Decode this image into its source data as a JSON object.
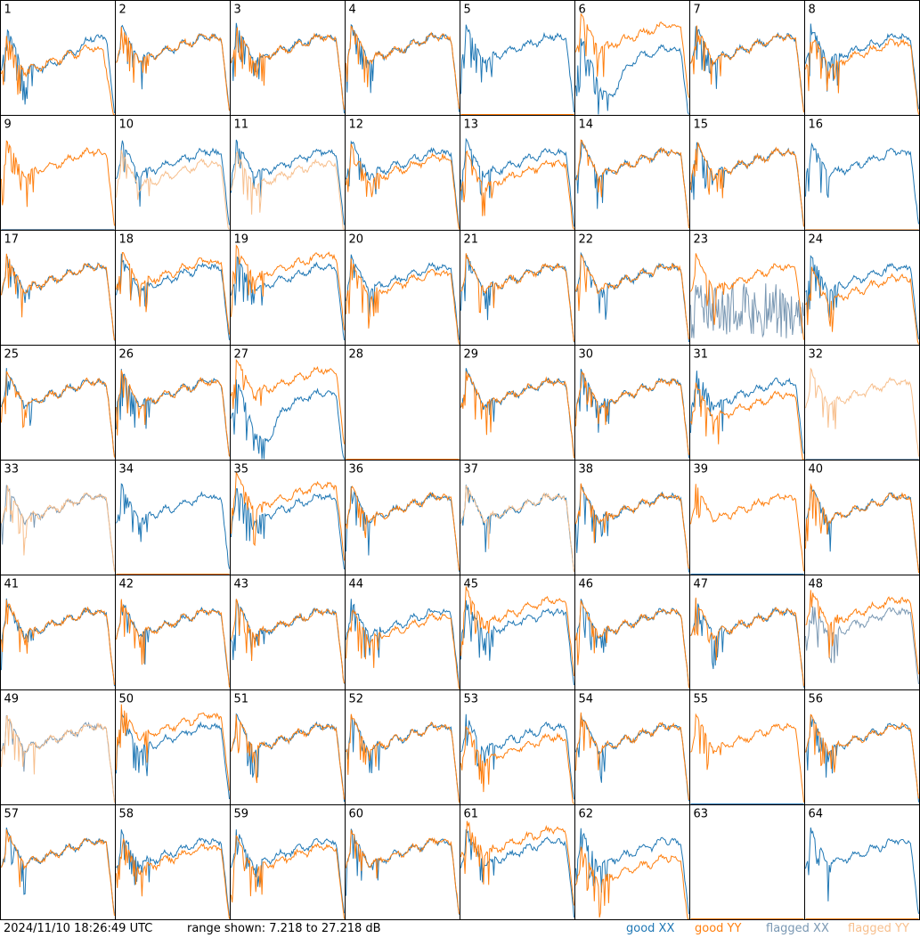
{
  "chart_data": {
    "type": "line",
    "layout": "8x8 grid of per-antenna bandpass spectra",
    "tiles": [
      "1",
      "2",
      "3",
      "4",
      "5",
      "6",
      "7",
      "8",
      "9",
      "10",
      "11",
      "12",
      "13",
      "14",
      "15",
      "16",
      "17",
      "18",
      "19",
      "20",
      "21",
      "22",
      "23",
      "24",
      "25",
      "26",
      "27",
      "28",
      "29",
      "30",
      "31",
      "32",
      "33",
      "34",
      "35",
      "36",
      "37",
      "38",
      "39",
      "40",
      "41",
      "42",
      "43",
      "44",
      "45",
      "46",
      "47",
      "48",
      "49",
      "50",
      "51",
      "52",
      "53",
      "54",
      "55",
      "56",
      "57",
      "58",
      "59",
      "60",
      "61",
      "62",
      "63",
      "64"
    ],
    "ylim_db": [
      7.218,
      27.218
    ],
    "series": [
      {
        "name": "good XX",
        "color": "#1f77b4"
      },
      {
        "name": "good YY",
        "color": "#ff7f0e"
      },
      {
        "name": "flagged XX",
        "color": "#7a98b3"
      },
      {
        "name": "flagged YY",
        "color": "#f7bf8d"
      }
    ],
    "tile_styles": {
      "1": {
        "x": "good",
        "y": "good",
        "yOff": 0.0,
        "spike": 1,
        "xShape": "sag",
        "yShape": "drop"
      },
      "2": {
        "x": "good",
        "y": "good",
        "yOff": 0.0,
        "spike": 0.6
      },
      "3": {
        "x": "good",
        "y": "good",
        "yOff": 0.0,
        "spike": 1
      },
      "4": {
        "x": "good",
        "y": "good",
        "yOff": 0.0,
        "spike": 0.6
      },
      "5": {
        "x": "good",
        "y": "good",
        "yOff": 0.0,
        "spike": 1,
        "yShape": "dead"
      },
      "6": {
        "x": "good",
        "y": "good",
        "yOff": -0.1,
        "spike": 1,
        "xShape": "deep"
      },
      "7": {
        "x": "good",
        "y": "good",
        "yOff": 0.0,
        "spike": 1
      },
      "8": {
        "x": "good",
        "y": "good",
        "yOff": 0.05,
        "spike": 1
      },
      "9": {
        "x": "flagged",
        "y": "good",
        "yOff": 0.0,
        "spike": 0.6,
        "xShape": "dead"
      },
      "10": {
        "x": "good",
        "y": "flagged",
        "yOff": 0.1,
        "spike": 0.6
      },
      "11": {
        "x": "good",
        "y": "flagged",
        "yOff": 0.1,
        "spike": 0.6
      },
      "12": {
        "x": "good",
        "y": "good",
        "yOff": 0.05,
        "spike": 1
      },
      "13": {
        "x": "good",
        "y": "good",
        "yOff": 0.1,
        "spike": 1
      },
      "14": {
        "x": "good",
        "y": "good",
        "yOff": 0.0,
        "spike": 0.6
      },
      "15": {
        "x": "good",
        "y": "good",
        "yOff": 0.0,
        "spike": 1
      },
      "16": {
        "x": "good",
        "y": "flagged",
        "yOff": 0.0,
        "spike": 0.6,
        "yShape": "dead"
      },
      "17": {
        "x": "good",
        "y": "good",
        "yOff": 0.0,
        "spike": 0.6
      },
      "18": {
        "x": "good",
        "y": "good",
        "yOff": -0.05,
        "spike": 1
      },
      "19": {
        "x": "good",
        "y": "good",
        "yOff": -0.1,
        "spike": 1
      },
      "20": {
        "x": "good",
        "y": "good",
        "yOff": 0.05,
        "spike": 1
      },
      "21": {
        "x": "good",
        "y": "good",
        "yOff": 0.0,
        "spike": 0.6
      },
      "22": {
        "x": "good",
        "y": "good",
        "yOff": 0.0,
        "spike": 0.6
      },
      "23": {
        "x": "flagged",
        "y": "good",
        "yOff": 0.0,
        "spike": 1,
        "xShape": "noisy"
      },
      "24": {
        "x": "good",
        "y": "good",
        "yOff": 0.1,
        "spike": 1
      },
      "25": {
        "x": "good",
        "y": "good",
        "yOff": 0.0,
        "spike": 0.6
      },
      "26": {
        "x": "good",
        "y": "good",
        "yOff": 0.0,
        "spike": 0.6
      },
      "27": {
        "x": "good",
        "y": "good",
        "yOff": -0.1,
        "spike": 1,
        "xShape": "deep"
      },
      "28": {
        "x": "good",
        "y": "good",
        "yOff": 0.0,
        "spike": 1,
        "xShape": "dead",
        "yShape": "dead"
      },
      "29": {
        "x": "good",
        "y": "good",
        "yOff": 0.0,
        "spike": 0.6
      },
      "30": {
        "x": "good",
        "y": "good",
        "yOff": 0.0,
        "spike": 1
      },
      "31": {
        "x": "good",
        "y": "good",
        "yOff": 0.12,
        "spike": 1
      },
      "32": {
        "x": "flagged",
        "y": "flagged",
        "yOff": 0.0,
        "spike": 0.6,
        "xShape": "dead"
      },
      "33": {
        "x": "flagged",
        "y": "flagged",
        "yOff": 0.0,
        "spike": 0.6
      },
      "34": {
        "x": "good",
        "y": "good",
        "yOff": 0.0,
        "spike": 1,
        "yShape": "dead"
      },
      "35": {
        "x": "good",
        "y": "good",
        "yOff": -0.1,
        "spike": 1
      },
      "36": {
        "x": "good",
        "y": "good",
        "yOff": 0.0,
        "spike": 0.6
      },
      "37": {
        "x": "good",
        "y": "flagged",
        "yOff": 0.0,
        "spike": 0.6
      },
      "38": {
        "x": "good",
        "y": "good",
        "yOff": 0.0,
        "spike": 0.6
      },
      "39": {
        "x": "good",
        "y": "good",
        "yOff": 0.0,
        "spike": 0.6,
        "xShape": "dead"
      },
      "40": {
        "x": "good",
        "y": "good",
        "yOff": 0.0,
        "spike": 0.6
      },
      "41": {
        "x": "good",
        "y": "good",
        "yOff": 0.0,
        "spike": 0.6
      },
      "42": {
        "x": "good",
        "y": "good",
        "yOff": 0.0,
        "spike": 0.6
      },
      "43": {
        "x": "good",
        "y": "good",
        "yOff": 0.0,
        "spike": 0.6
      },
      "44": {
        "x": "good",
        "y": "good",
        "yOff": 0.05,
        "spike": 1
      },
      "45": {
        "x": "good",
        "y": "good",
        "yOff": -0.1,
        "spike": 1
      },
      "46": {
        "x": "good",
        "y": "good",
        "yOff": 0.0,
        "spike": 0.6
      },
      "47": {
        "x": "good",
        "y": "good",
        "yOff": 0.0,
        "spike": 1
      },
      "48": {
        "x": "flagged",
        "y": "good",
        "yOff": -0.1,
        "spike": 1
      },
      "49": {
        "x": "flagged",
        "y": "flagged",
        "yOff": 0.0,
        "spike": 0.6
      },
      "50": {
        "x": "good",
        "y": "good",
        "yOff": -0.1,
        "spike": 1
      },
      "51": {
        "x": "good",
        "y": "good",
        "yOff": 0.0,
        "spike": 0.6
      },
      "52": {
        "x": "good",
        "y": "good",
        "yOff": 0.0,
        "spike": 1
      },
      "53": {
        "x": "good",
        "y": "good",
        "yOff": 0.1,
        "spike": 1
      },
      "54": {
        "x": "good",
        "y": "good",
        "yOff": 0.0,
        "spike": 0.6
      },
      "55": {
        "x": "good",
        "y": "good",
        "yOff": 0.0,
        "spike": 0.6,
        "xShape": "dead"
      },
      "56": {
        "x": "good",
        "y": "good",
        "yOff": 0.0,
        "spike": 1
      },
      "57": {
        "x": "good",
        "y": "good",
        "yOff": 0.0,
        "spike": 0.6
      },
      "58": {
        "x": "good",
        "y": "good",
        "yOff": 0.05,
        "spike": 1
      },
      "59": {
        "x": "good",
        "y": "good",
        "yOff": 0.05,
        "spike": 1
      },
      "60": {
        "x": "good",
        "y": "good",
        "yOff": 0.0,
        "spike": 0.6
      },
      "61": {
        "x": "good",
        "y": "good",
        "yOff": -0.1,
        "spike": 1
      },
      "62": {
        "x": "good",
        "y": "good",
        "yOff": 0.15,
        "spike": 1
      },
      "63": {
        "x": "good",
        "y": "good",
        "yOff": 0.0,
        "spike": 1,
        "xShape": "dead",
        "yShape": "dead"
      },
      "64": {
        "x": "good",
        "y": "good",
        "yOff": 0.0,
        "spike": 0.6,
        "yShape": "dead"
      }
    }
  },
  "footer": {
    "timestamp": "2024/11/10 18:26:49 UTC",
    "range": "range shown: 7.218 to 27.218 dB"
  },
  "legend": {
    "good_xx": "good XX",
    "good_yy": "good YY",
    "flagged_xx": "flagged XX",
    "flagged_yy": "flagged YY"
  }
}
